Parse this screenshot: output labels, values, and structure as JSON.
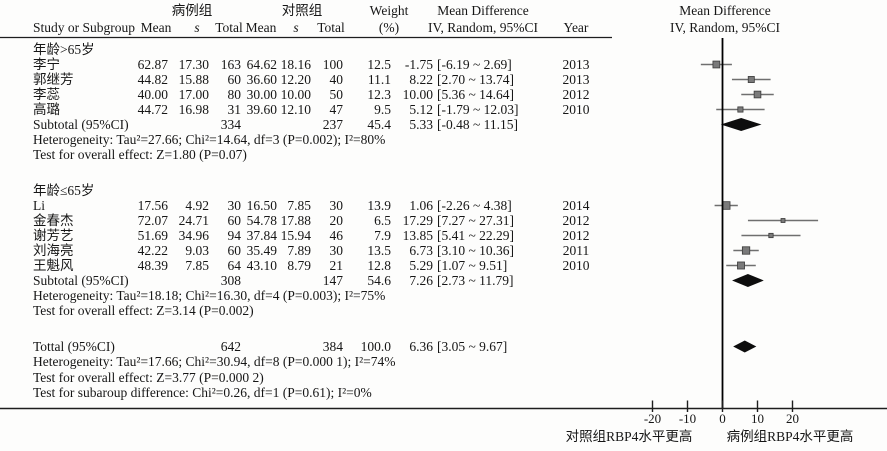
{
  "header": {
    "study": "Study or Subgroup",
    "case_group": "病例组",
    "control_group": "对照组",
    "mean": "Mean",
    "s": "s",
    "total": "Total",
    "weight_line1": "Weight",
    "weight_line2": "(%)",
    "md_line1": "Mean Difference",
    "md_line2": "IV, Random, 95%CI",
    "year": "Year"
  },
  "chart_data": {
    "type": "forest",
    "effect_measure": "Mean Difference, IV, Random, 95% CI",
    "x_ticks": [
      -20,
      -10,
      0,
      10,
      20
    ],
    "x_tick_labels": [
      "-20",
      "-10",
      "0",
      "10",
      "20"
    ],
    "xlim": [
      -46,
      46
    ],
    "x_axis_left_label": "对照组RBP4水平更高",
    "x_axis_right_label": "病例组RBP4水平更高",
    "sections": [
      {
        "label": "年龄>65岁",
        "studies": [
          {
            "name": "李宁",
            "mean1": "62.87",
            "s1": "17.30",
            "n1": "163",
            "mean2": "64.62",
            "s2": "18.16",
            "n2": "100",
            "weight": "12.5",
            "est": "-1.75",
            "ci": "[-6.19 ~ 2.69]",
            "year": "2013",
            "point": -1.75,
            "lo": -6.19,
            "hi": 2.69,
            "weight_num": 12.5
          },
          {
            "name": "郭继芳",
            "mean1": "44.82",
            "s1": "15.88",
            "n1": "60",
            "mean2": "36.60",
            "s2": "12.20",
            "n2": "40",
            "weight": "11.1",
            "est": "8.22",
            "ci": "[2.70 ~ 13.74]",
            "year": "2013",
            "point": 8.22,
            "lo": 2.7,
            "hi": 13.74,
            "weight_num": 11.1
          },
          {
            "name": "李蕊",
            "mean1": "40.00",
            "s1": "17.00",
            "n1": "80",
            "mean2": "30.00",
            "s2": "10.00",
            "n2": "50",
            "weight": "12.3",
            "est": "10.00",
            "ci": "[5.36 ~ 14.64]",
            "year": "2012",
            "point": 10.0,
            "lo": 5.36,
            "hi": 14.64,
            "weight_num": 12.3
          },
          {
            "name": "高璐",
            "mean1": "44.72",
            "s1": "16.98",
            "n1": "31",
            "mean2": "39.60",
            "s2": "12.10",
            "n2": "47",
            "weight": "9.5",
            "est": "5.12",
            "ci": "[-1.79 ~ 12.03]",
            "year": "2010",
            "point": 5.12,
            "lo": -1.79,
            "hi": 12.03,
            "weight_num": 9.5
          }
        ],
        "subtotal": {
          "label": "Subtotal (95%CI)",
          "n1": "334",
          "n2": "237",
          "weight": "45.4",
          "est": "5.33",
          "ci": "[-0.48 ~ 11.15]",
          "point": 5.33,
          "lo": -0.48,
          "hi": 11.15
        },
        "notes": [
          "Heterogeneity: Tau²=27.66; Chi²=14.64, df=3 (P=0.002); I²=80%",
          "Test for overall effect: Z=1.80 (P=0.07)"
        ]
      },
      {
        "label": "年龄≤65岁",
        "studies": [
          {
            "name": "Li",
            "mean1": "17.56",
            "s1": "4.92",
            "n1": "30",
            "mean2": "16.50",
            "s2": "7.85",
            "n2": "30",
            "weight": "13.9",
            "est": "1.06",
            "ci": "[-2.26 ~ 4.38]",
            "year": "2014",
            "point": 1.06,
            "lo": -2.26,
            "hi": 4.38,
            "weight_num": 13.9
          },
          {
            "name": "金春杰",
            "mean1": "72.07",
            "s1": "24.71",
            "n1": "60",
            "mean2": "54.78",
            "s2": "17.88",
            "n2": "20",
            "weight": "6.5",
            "est": "17.29",
            "ci": "[7.27 ~ 27.31]",
            "year": "2012",
            "point": 17.29,
            "lo": 7.27,
            "hi": 27.31,
            "weight_num": 6.5
          },
          {
            "name": "谢芳艺",
            "mean1": "51.69",
            "s1": "34.96",
            "n1": "94",
            "mean2": "37.84",
            "s2": "15.94",
            "n2": "46",
            "weight": "7.9",
            "est": "13.85",
            "ci": "[5.41 ~ 22.29]",
            "year": "2012",
            "point": 13.85,
            "lo": 5.41,
            "hi": 22.29,
            "weight_num": 7.9
          },
          {
            "name": "刘海亮",
            "mean1": "42.22",
            "s1": "9.03",
            "n1": "60",
            "mean2": "35.49",
            "s2": "7.89",
            "n2": "30",
            "weight": "13.5",
            "est": "6.73",
            "ci": "[3.10 ~ 10.36]",
            "year": "2011",
            "point": 6.73,
            "lo": 3.1,
            "hi": 10.36,
            "weight_num": 13.5
          },
          {
            "name": "王魁风",
            "mean1": "48.39",
            "s1": "7.85",
            "n1": "64",
            "mean2": "43.10",
            "s2": "8.79",
            "n2": "21",
            "weight": "12.8",
            "est": "5.29",
            "ci": "[1.07 ~ 9.51]",
            "year": "2010",
            "point": 5.29,
            "lo": 1.07,
            "hi": 9.51,
            "weight_num": 12.8
          }
        ],
        "subtotal": {
          "label": "Subtotal (95%CI)",
          "n1": "308",
          "n2": "147",
          "weight": "54.6",
          "est": "7.26",
          "ci": "[2.73 ~ 11.79]",
          "point": 7.26,
          "lo": 2.73,
          "hi": 11.79
        },
        "notes": [
          "Heterogeneity: Tau²=18.18; Chi²=16.30, df=4 (P=0.003); I²=75%",
          "Test for overall effect: Z=3.14 (P=0.002)"
        ]
      }
    ],
    "total": {
      "label": "Tottal (95%CI)",
      "n1": "642",
      "n2": "384",
      "weight": "100.0",
      "est": "6.36",
      "ci": "[3.05 ~ 9.67]",
      "point": 6.36,
      "lo": 3.05,
      "hi": 9.67
    },
    "total_notes": [
      "Heterogeneity: Tau²=17.66; Chi²=30.94, df=8 (P=0.000 1); I²=74%",
      "Test for overall effect: Z=3.77 (P=0.000 2)",
      "Test for subaroup difference: Chi²=0.26, df=1 (P=0.61); I²=0%"
    ],
    "colors": {
      "ci_line": "#6f6f6f",
      "point_square": "#7a7a7a",
      "diamond": "#0d0d0d",
      "axis": "#1e1e1e"
    }
  }
}
